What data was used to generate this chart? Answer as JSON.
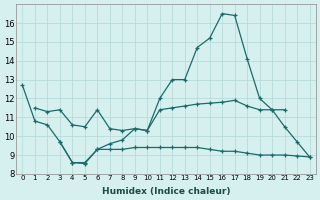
{
  "title": "",
  "xlabel": "Humidex (Indice chaleur)",
  "ylabel": "",
  "background_color": "#d6f0ef",
  "grid_color": "#b8dbd9",
  "line_color": "#1a6b6b",
  "ylim": [
    8,
    17
  ],
  "yticks": [
    8,
    9,
    10,
    11,
    12,
    13,
    14,
    15,
    16
  ],
  "xlim": [
    -0.5,
    23.5
  ],
  "xticks": [
    0,
    1,
    2,
    3,
    4,
    5,
    6,
    7,
    8,
    9,
    10,
    11,
    12,
    13,
    14,
    15,
    16,
    17,
    18,
    19,
    20,
    21,
    22,
    23
  ],
  "x_labels": [
    "0",
    "1",
    "2",
    "3",
    "4",
    "5",
    "6",
    "7",
    "8",
    "9",
    "10",
    "11",
    "12",
    "13",
    "14",
    "15",
    "16",
    "17",
    "18",
    "19",
    "20",
    "21",
    "22",
    "23"
  ],
  "series_main": [
    12.7,
    10.8,
    10.6,
    9.7,
    8.6,
    8.6,
    9.3,
    9.6,
    9.8,
    10.4,
    10.3,
    12.0,
    13.0,
    13.0,
    14.7,
    15.2,
    16.5,
    16.4,
    14.1,
    12.0,
    11.4,
    10.5,
    9.7,
    8.9
  ],
  "series_mid": [
    null,
    11.5,
    11.3,
    11.4,
    10.6,
    10.5,
    11.4,
    10.4,
    10.3,
    10.4,
    10.3,
    11.4,
    11.5,
    11.6,
    11.7,
    11.75,
    11.8,
    11.9,
    11.6,
    11.4,
    11.4,
    11.4,
    null,
    null
  ],
  "series_low": [
    null,
    null,
    null,
    9.7,
    8.6,
    8.55,
    9.3,
    9.3,
    9.3,
    9.4,
    9.4,
    9.4,
    9.4,
    9.4,
    9.4,
    9.3,
    9.2,
    9.2,
    9.1,
    9.0,
    9.0,
    9.0,
    8.95,
    8.9
  ]
}
